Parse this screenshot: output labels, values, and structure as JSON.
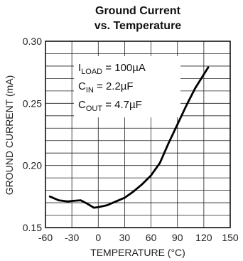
{
  "chart_data": {
    "type": "line",
    "title": [
      "Ground Current",
      "vs. Temperature"
    ],
    "xlabel": "TEMPERATURE (°C)",
    "ylabel": "GROUND CURRENT (mA)",
    "xlim": [
      -60,
      150
    ],
    "ylim": [
      0.15,
      0.3
    ],
    "x_ticks": [
      "-60",
      "-30",
      "0",
      "30",
      "60",
      "90",
      "120",
      "150"
    ],
    "y_ticks": [
      "0.15",
      "0.20",
      "0.25",
      "0.30"
    ],
    "grid": true,
    "annotations": [
      {
        "main": "I",
        "sub": "LOAD",
        "rest": " = 100µA"
      },
      {
        "main": "C",
        "sub": "IN",
        "rest": " = 2.2µF"
      },
      {
        "main": "C",
        "sub": "OUT",
        "rest": " = 4.7µF"
      }
    ],
    "series": [
      {
        "x": [
          -55,
          -45,
          -35,
          -28,
          -20,
          -12,
          -5,
          0,
          10,
          20,
          30,
          40,
          50,
          60,
          70,
          80,
          90,
          100,
          110,
          125
        ],
        "y": [
          0.175,
          0.172,
          0.171,
          0.1715,
          0.172,
          0.169,
          0.166,
          0.1665,
          0.168,
          0.171,
          0.174,
          0.179,
          0.185,
          0.192,
          0.202,
          0.218,
          0.233,
          0.248,
          0.262,
          0.279
        ]
      }
    ]
  }
}
